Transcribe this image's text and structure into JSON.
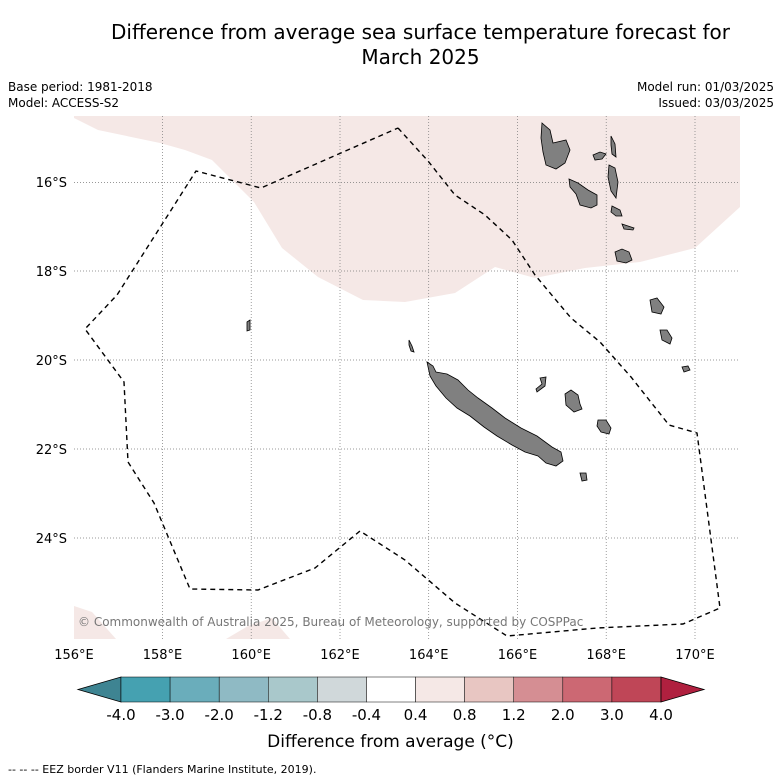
{
  "title": {
    "line1": "Difference from average sea surface temperature forecast for",
    "line2": "March 2025"
  },
  "meta": {
    "base_period": "Base period: 1981-2018",
    "model": "Model: ACCESS-S2",
    "model_run": "Model run: 01/03/2025",
    "issued": "Issued: 03/03/2025"
  },
  "map": {
    "lon_labels": [
      "156°E",
      "158°E",
      "160°E",
      "162°E",
      "164°E",
      "166°E",
      "168°E",
      "170°E"
    ],
    "lat_labels": [
      "16°S",
      "18°S",
      "20°S",
      "22°S",
      "24°S"
    ],
    "copyright": "© Commonwealth of Australia 2025, Bureau of Meteorology, supported by COSPPac",
    "warm_anomaly_color": "#f5e8e6",
    "land_color": "#808080",
    "eez_line": "dashed"
  },
  "colorbar": {
    "ticks": [
      "-4.0",
      "-3.0",
      "-2.0",
      "-1.2",
      "-0.8",
      "-0.4",
      "0.4",
      "0.8",
      "1.2",
      "2.0",
      "3.0",
      "4.0"
    ],
    "colors": [
      "#3e8492",
      "#45a1b1",
      "#6aadbb",
      "#8fbac4",
      "#a9c8cb",
      "#d0d8da",
      "#ffffff",
      "#f5e8e6",
      "#e8c6c2",
      "#d58e93",
      "#cc6873",
      "#bf4657",
      "#b0203f"
    ],
    "title": "Difference from average (°C)"
  },
  "footnote": "--  --  -- EEZ border V11 (Flanders Marine Institute, 2019)."
}
